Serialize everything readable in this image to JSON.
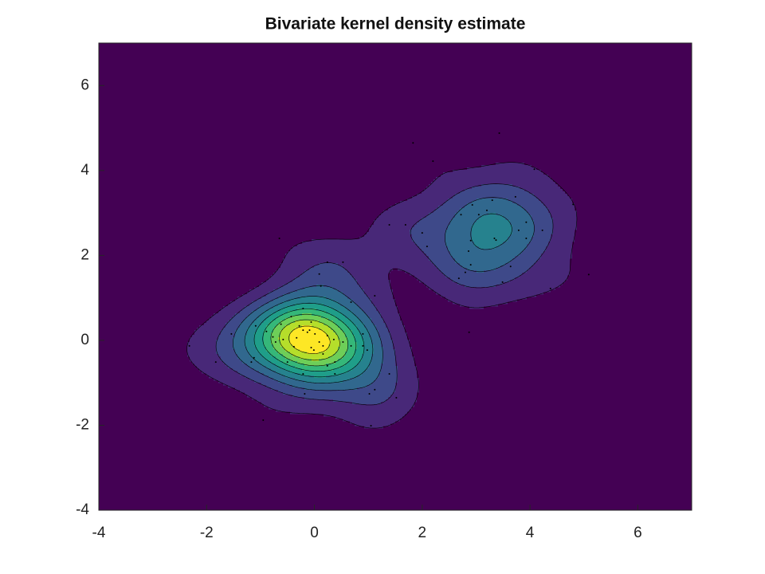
{
  "chart_data": {
    "type": "contour",
    "title": "Bivariate kernel density estimate",
    "xlim": [
      -4,
      7
    ],
    "ylim": [
      -4,
      7
    ],
    "xticks": [
      -4,
      -2,
      0,
      2,
      4,
      6
    ],
    "yticks": [
      -4,
      -2,
      0,
      2,
      4,
      6
    ],
    "colors": [
      "#440154",
      "#482878",
      "#3e4989",
      "#31688e",
      "#26828e",
      "#1f9e89",
      "#35b779",
      "#6ece58",
      "#b5de2b",
      "#fde725"
    ],
    "point_color": "#000000",
    "x": [
      -0.65,
      0.24,
      1.83,
      3.43,
      2.2,
      4.08,
      4.8,
      5.09,
      2.68,
      2.8,
      3.49,
      4.38,
      2.9,
      3.34,
      3.93,
      3.79,
      4.23,
      3.05,
      2.72,
      3.2,
      2.93,
      3.73,
      3.93,
      3.3,
      3.37,
      2.09,
      2.0,
      1.69,
      1.39,
      2.86,
      3.64,
      2.9,
      -0.21,
      -0.09,
      -0.28,
      0.09,
      -0.06,
      -0.01,
      0.16,
      0.38,
      0.24,
      0.36,
      0.53,
      0.68,
      0.9,
      0.98,
      0.68,
      -0.21,
      -0.62,
      -0.77,
      -0.72,
      -0.58,
      -1.09,
      -1.54,
      -1.83,
      -2.32,
      -1.12,
      -1.17,
      -0.5,
      -0.21,
      -0.18,
      0.24,
      1.02,
      1.12,
      1.39,
      1.52,
      1.05,
      -0.95,
      0.53,
      0.12,
      0.09,
      1.12,
      -0.43,
      -0.89,
      -0.13,
      0.01,
      -0.33,
      -0.38,
      0.16,
      -0.06,
      0.38,
      2.87,
      0.9
    ],
    "y": [
      2.4,
      1.84,
      4.65,
      4.88,
      4.22,
      4.03,
      3.2,
      1.55,
      1.46,
      1.6,
      1.37,
      1.22,
      2.35,
      2.4,
      2.4,
      2.59,
      2.59,
      2.96,
      2.96,
      3.06,
      3.19,
      3.38,
      2.78,
      3.3,
      2.36,
      2.21,
      2.53,
      2.72,
      2.72,
      2.1,
      1.74,
      1.78,
      0.24,
      0.24,
      0.34,
      -0.04,
      -0.17,
      -0.23,
      -0.32,
      -0.51,
      0.11,
      0.02,
      -0.04,
      -0.13,
      -0.13,
      -0.23,
      0.9,
      0.75,
      0.38,
      0.08,
      -0.04,
      0.02,
      0.34,
      0.15,
      -0.51,
      -0.13,
      -0.41,
      -0.51,
      -0.51,
      -0.79,
      -1.26,
      -0.6,
      -1.26,
      -1.16,
      -0.79,
      -1.35,
      -2.01,
      -1.88,
      1.84,
      1.28,
      1.56,
      1.05,
      0.56,
      0.21,
      0.19,
      0.15,
      0.06,
      -0.15,
      -0.13,
      0.43,
      -0.79,
      0.19,
      0.15
    ]
  }
}
